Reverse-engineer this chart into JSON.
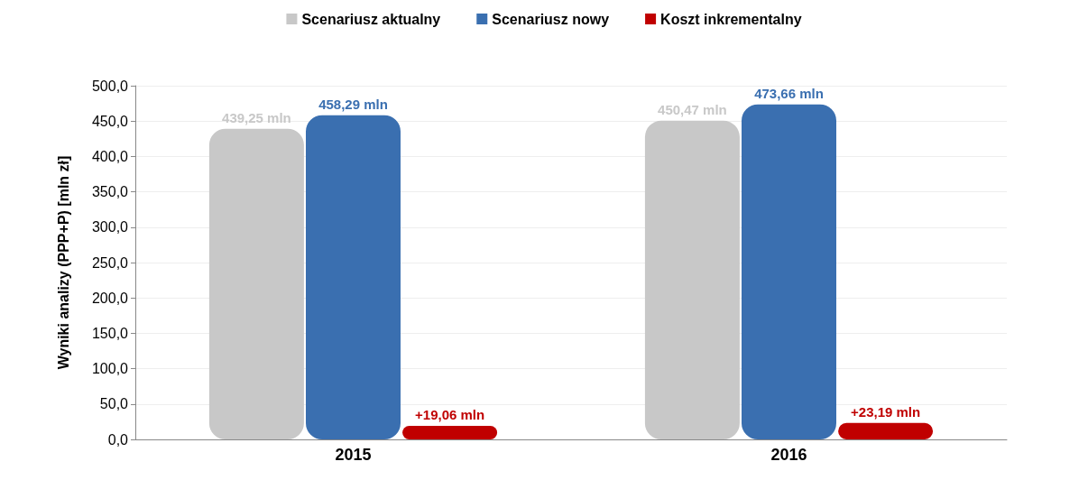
{
  "chart_data": {
    "type": "bar",
    "ylabel": "Wyniki analizy (PPP+P) [mln zł]",
    "categories": [
      "2015",
      "2016"
    ],
    "series": [
      {
        "name": "Scenariusz aktualny",
        "color": "#c8c8c8",
        "values": [
          439.25,
          450.47
        ],
        "value_labels": [
          "439,25 mln",
          "450,47 mln"
        ]
      },
      {
        "name": "Scenariusz nowy",
        "color": "#3a6fb0",
        "values": [
          458.29,
          473.66
        ],
        "value_labels": [
          "458,29 mln",
          "473,66 mln"
        ]
      },
      {
        "name": "Koszt inkrementalny",
        "color": "#c00000",
        "values": [
          19.06,
          23.19
        ],
        "value_labels": [
          "+19,06 mln",
          "+23,19 mln"
        ]
      }
    ],
    "ylim": [
      0,
      500
    ],
    "yticks": [
      {
        "value": 0,
        "label": "0,0"
      },
      {
        "value": 50,
        "label": "50,0"
      },
      {
        "value": 100,
        "label": "100,0"
      },
      {
        "value": 150,
        "label": "150,0"
      },
      {
        "value": 200,
        "label": "200,0"
      },
      {
        "value": 250,
        "label": "250,0"
      },
      {
        "value": 300,
        "label": "300,0"
      },
      {
        "value": 350,
        "label": "350,0"
      },
      {
        "value": 400,
        "label": "400,0"
      },
      {
        "value": 450,
        "label": "450,0"
      },
      {
        "value": 500,
        "label": "500,0"
      }
    ],
    "grid": "y",
    "legend": "top"
  }
}
